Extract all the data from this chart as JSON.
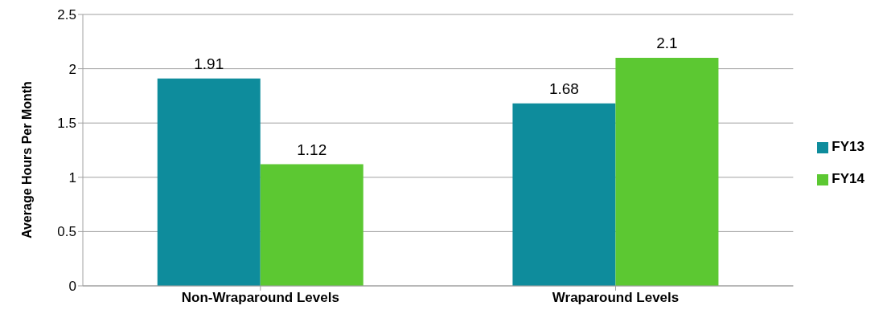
{
  "chart_data": {
    "type": "bar",
    "categories": [
      "Non-Wraparound Levels",
      "Wraparound Levels"
    ],
    "series": [
      {
        "name": "FY13",
        "color": "#0e8c9c",
        "values": [
          1.91,
          1.68
        ]
      },
      {
        "name": "FY14",
        "color": "#5cc832",
        "values": [
          1.12,
          2.1
        ]
      }
    ],
    "ylabel": "Average Hours Per Month",
    "ylim": [
      0,
      2.5
    ],
    "yticks": [
      0,
      0.5,
      1,
      1.5,
      2,
      2.5
    ],
    "grid": "y",
    "legend": "right",
    "data_labels": true
  }
}
